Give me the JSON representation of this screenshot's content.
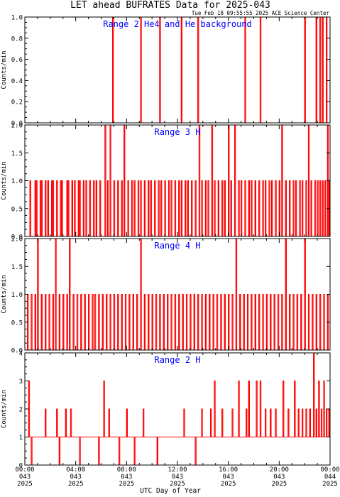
{
  "title": "LET ahead BUFRATES Data for 2025-043",
  "timestamp": "Tue Feb 18 09:55:55 2025 ACE Science Center",
  "xlabel": "UTC Day of Year",
  "x_ticks": [
    {
      "time": "00:00",
      "day": "043",
      "year": "2025"
    },
    {
      "time": "04:00",
      "day": "043",
      "year": "2025"
    },
    {
      "time": "08:00",
      "day": "043",
      "year": "2025"
    },
    {
      "time": "12:00",
      "day": "043",
      "year": "2025"
    },
    {
      "time": "16:00",
      "day": "043",
      "year": "2025"
    },
    {
      "time": "20:00",
      "day": "043",
      "year": "2025"
    },
    {
      "time": "00:00",
      "day": "044",
      "year": "2025"
    }
  ],
  "colors": {
    "series": "#ff0000",
    "panel_title": "#0000ff",
    "axes": "#000000"
  },
  "chart_data": [
    {
      "type": "line",
      "title": "Range 2 He4 and He background",
      "ylabel": "Counts/min",
      "xlim": [
        0,
        24
      ],
      "ylim": [
        0,
        1
      ],
      "yticks": [
        "0.0",
        "0.2",
        "0.4",
        "0.6",
        "0.8",
        "1.0"
      ],
      "baseline": 0,
      "spikes": [
        [
          6.9,
          1
        ],
        [
          9.1,
          1
        ],
        [
          10.6,
          1
        ],
        [
          12.3,
          1
        ],
        [
          13.6,
          1
        ],
        [
          17.3,
          1
        ],
        [
          18.5,
          1
        ],
        [
          22.0,
          1
        ],
        [
          22.9,
          1
        ],
        [
          23.2,
          1
        ],
        [
          23.4,
          1
        ],
        [
          23.7,
          1
        ]
      ]
    },
    {
      "type": "line",
      "title": "Range 3 H",
      "ylabel": "Counts/min",
      "xlim": [
        0,
        24
      ],
      "ylim": [
        0,
        2
      ],
      "yticks": [
        "0.0",
        "0.5",
        "1.0",
        "1.5",
        "2.0"
      ],
      "baseline": 0,
      "spikes": [
        [
          0.4,
          1
        ],
        [
          0.8,
          1
        ],
        [
          0.9,
          1
        ],
        [
          1.2,
          1
        ],
        [
          1.3,
          1
        ],
        [
          1.6,
          1
        ],
        [
          1.8,
          1
        ],
        [
          2.1,
          1
        ],
        [
          2.2,
          1
        ],
        [
          2.5,
          1
        ],
        [
          2.8,
          1
        ],
        [
          2.9,
          1
        ],
        [
          3.3,
          1
        ],
        [
          3.4,
          1
        ],
        [
          3.7,
          1
        ],
        [
          3.9,
          1
        ],
        [
          4.2,
          1
        ],
        [
          4.3,
          1
        ],
        [
          4.6,
          1
        ],
        [
          4.8,
          1
        ],
        [
          5.1,
          1
        ],
        [
          5.4,
          1
        ],
        [
          5.6,
          1
        ],
        [
          5.9,
          1
        ],
        [
          6.3,
          2
        ],
        [
          6.5,
          1
        ],
        [
          6.7,
          2
        ],
        [
          7.0,
          1
        ],
        [
          7.3,
          1
        ],
        [
          7.6,
          1
        ],
        [
          7.8,
          2
        ],
        [
          8.1,
          1
        ],
        [
          8.4,
          1
        ],
        [
          8.6,
          1
        ],
        [
          8.9,
          1
        ],
        [
          9.1,
          1
        ],
        [
          9.4,
          1
        ],
        [
          9.7,
          1
        ],
        [
          9.9,
          1
        ],
        [
          10.2,
          1
        ],
        [
          10.5,
          1
        ],
        [
          10.7,
          1
        ],
        [
          11.0,
          1
        ],
        [
          11.3,
          1
        ],
        [
          11.5,
          1
        ],
        [
          11.8,
          1
        ],
        [
          12.1,
          1
        ],
        [
          12.3,
          1
        ],
        [
          12.6,
          1
        ],
        [
          12.8,
          1
        ],
        [
          13.1,
          1
        ],
        [
          13.4,
          1
        ],
        [
          13.7,
          2
        ],
        [
          13.9,
          1
        ],
        [
          14.2,
          1
        ],
        [
          14.4,
          1
        ],
        [
          14.7,
          2
        ],
        [
          14.9,
          1
        ],
        [
          15.2,
          1
        ],
        [
          15.5,
          1
        ],
        [
          15.7,
          1
        ],
        [
          16.0,
          2
        ],
        [
          16.2,
          1
        ],
        [
          16.5,
          2
        ],
        [
          16.8,
          1
        ],
        [
          17.0,
          1
        ],
        [
          17.3,
          1
        ],
        [
          17.6,
          1
        ],
        [
          17.8,
          1
        ],
        [
          18.1,
          1
        ],
        [
          18.4,
          1
        ],
        [
          18.7,
          1
        ],
        [
          18.9,
          1
        ],
        [
          19.2,
          1
        ],
        [
          19.4,
          1
        ],
        [
          19.7,
          1
        ],
        [
          20.0,
          1
        ],
        [
          20.2,
          2
        ],
        [
          20.5,
          1
        ],
        [
          20.8,
          1
        ],
        [
          21.1,
          1
        ],
        [
          21.3,
          1
        ],
        [
          21.6,
          1
        ],
        [
          21.8,
          1
        ],
        [
          22.1,
          1
        ],
        [
          22.3,
          2
        ],
        [
          22.5,
          1
        ],
        [
          22.8,
          1
        ],
        [
          23.0,
          1
        ],
        [
          23.2,
          1
        ],
        [
          23.4,
          1
        ],
        [
          23.6,
          1
        ],
        [
          23.8,
          2
        ],
        [
          23.9,
          1
        ]
      ]
    },
    {
      "type": "line",
      "title": "Range 4 H",
      "ylabel": "Counts/min",
      "xlim": [
        0,
        24
      ],
      "ylim": [
        0,
        2
      ],
      "yticks": [
        "0.0",
        "0.5",
        "1.0",
        "1.5",
        "2.0"
      ],
      "baseline": 0,
      "spikes": [
        [
          0.2,
          1
        ],
        [
          0.5,
          1
        ],
        [
          0.8,
          1
        ],
        [
          1.0,
          2
        ],
        [
          1.3,
          1
        ],
        [
          1.6,
          1
        ],
        [
          1.9,
          1
        ],
        [
          2.2,
          1
        ],
        [
          2.4,
          2
        ],
        [
          2.7,
          1
        ],
        [
          3.0,
          1
        ],
        [
          3.3,
          1
        ],
        [
          3.5,
          2
        ],
        [
          3.8,
          1
        ],
        [
          4.1,
          1
        ],
        [
          4.4,
          1
        ],
        [
          4.7,
          1
        ],
        [
          5.0,
          1
        ],
        [
          5.3,
          1
        ],
        [
          5.5,
          1
        ],
        [
          5.8,
          1
        ],
        [
          6.1,
          1
        ],
        [
          6.4,
          1
        ],
        [
          6.7,
          1
        ],
        [
          7.0,
          1
        ],
        [
          7.3,
          1
        ],
        [
          7.6,
          1
        ],
        [
          7.9,
          1
        ],
        [
          8.2,
          1
        ],
        [
          8.5,
          1
        ],
        [
          8.8,
          1
        ],
        [
          9.1,
          2
        ],
        [
          9.4,
          1
        ],
        [
          9.7,
          1
        ],
        [
          10.0,
          1
        ],
        [
          10.3,
          1
        ],
        [
          10.6,
          1
        ],
        [
          10.9,
          1
        ],
        [
          11.2,
          1
        ],
        [
          11.5,
          1
        ],
        [
          11.8,
          1
        ],
        [
          12.1,
          1
        ],
        [
          12.4,
          1
        ],
        [
          12.7,
          1
        ],
        [
          13.0,
          1
        ],
        [
          13.3,
          1
        ],
        [
          13.6,
          1
        ],
        [
          13.9,
          1
        ],
        [
          14.2,
          1
        ],
        [
          14.5,
          1
        ],
        [
          14.8,
          1
        ],
        [
          15.1,
          1
        ],
        [
          15.4,
          1
        ],
        [
          15.7,
          1
        ],
        [
          16.0,
          1
        ],
        [
          16.3,
          1
        ],
        [
          16.6,
          2
        ],
        [
          16.9,
          1
        ],
        [
          17.2,
          1
        ],
        [
          17.5,
          1
        ],
        [
          17.8,
          1
        ],
        [
          18.1,
          1
        ],
        [
          18.4,
          1
        ],
        [
          18.7,
          1
        ],
        [
          19.0,
          1
        ],
        [
          19.3,
          1
        ],
        [
          19.6,
          1
        ],
        [
          19.9,
          1
        ],
        [
          20.2,
          1
        ],
        [
          20.5,
          2
        ],
        [
          20.8,
          1
        ],
        [
          21.1,
          1
        ],
        [
          21.4,
          1
        ],
        [
          21.7,
          1
        ],
        [
          22.0,
          2
        ],
        [
          22.3,
          1
        ],
        [
          22.6,
          1
        ],
        [
          22.9,
          1
        ],
        [
          23.2,
          1
        ],
        [
          23.5,
          1
        ],
        [
          23.8,
          1
        ]
      ]
    },
    {
      "type": "line",
      "title": "Range 2 H",
      "ylabel": "Counts/min",
      "xlim": [
        0,
        24
      ],
      "ylim": [
        0,
        4
      ],
      "yticks": [
        "0",
        "1",
        "2",
        "3",
        "4"
      ],
      "baseline": 1,
      "spikes": [
        [
          0.3,
          3
        ],
        [
          0.5,
          0
        ],
        [
          1.1,
          1
        ],
        [
          1.6,
          2
        ],
        [
          2.5,
          2
        ],
        [
          2.7,
          0
        ],
        [
          3.2,
          2
        ],
        [
          3.6,
          2
        ],
        [
          4.3,
          0
        ],
        [
          5.1,
          1
        ],
        [
          5.8,
          0
        ],
        [
          6.2,
          3
        ],
        [
          6.6,
          2
        ],
        [
          7.4,
          0
        ],
        [
          8.0,
          2
        ],
        [
          8.6,
          0
        ],
        [
          9.3,
          2
        ],
        [
          10.4,
          0
        ],
        [
          11.2,
          1
        ],
        [
          12.5,
          2
        ],
        [
          13.4,
          0
        ],
        [
          13.9,
          2
        ],
        [
          14.6,
          2
        ],
        [
          14.9,
          3
        ],
        [
          15.5,
          2
        ],
        [
          16.3,
          2
        ],
        [
          16.8,
          3
        ],
        [
          17.4,
          2
        ],
        [
          17.6,
          3
        ],
        [
          18.2,
          3
        ],
        [
          18.5,
          3
        ],
        [
          18.9,
          2
        ],
        [
          19.3,
          2
        ],
        [
          19.7,
          2
        ],
        [
          20.3,
          3
        ],
        [
          20.7,
          2
        ],
        [
          21.2,
          3
        ],
        [
          21.5,
          2
        ],
        [
          21.8,
          2
        ],
        [
          22.1,
          2
        ],
        [
          22.4,
          2
        ],
        [
          22.7,
          4
        ],
        [
          22.9,
          2
        ],
        [
          23.1,
          3
        ],
        [
          23.3,
          2
        ],
        [
          23.5,
          3
        ],
        [
          23.7,
          2
        ],
        [
          23.9,
          2
        ]
      ]
    }
  ]
}
